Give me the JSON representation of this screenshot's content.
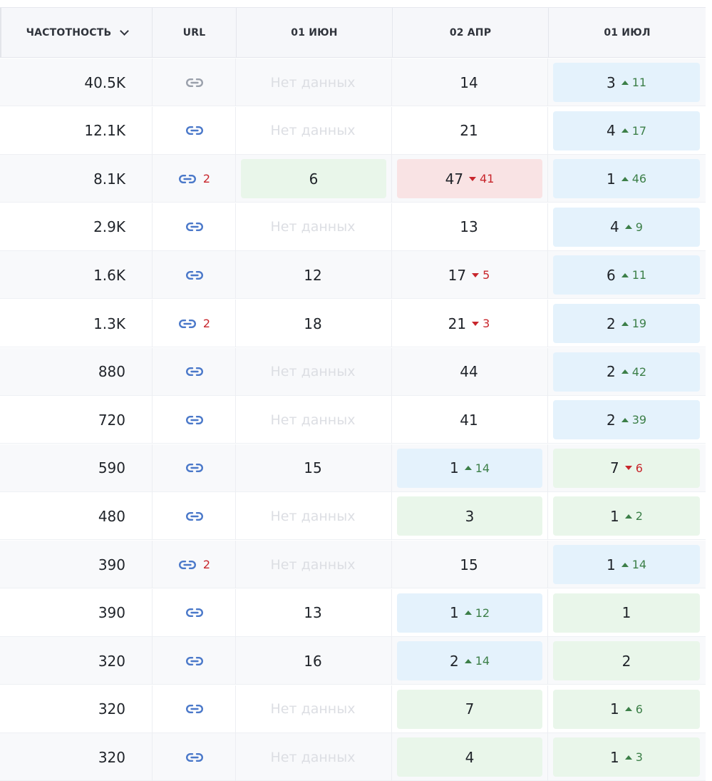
{
  "header": {
    "freq_label": "ЧАСТОТНОСТЬ",
    "url_label": "URL",
    "dates": [
      "01 ИЮН",
      "02 АПР",
      "01 ИЮЛ"
    ]
  },
  "no_data_label": "Нет данных",
  "colors": {
    "blue_pill": "#e4f2fc",
    "green_pill": "#e9f6ea",
    "red_pill": "#f9e3e4",
    "up": "#3c7f48",
    "down": "#c8262c",
    "link_icon": "#4a78c9"
  },
  "rows": [
    {
      "freq": "40.5K",
      "url_icon": "link-icon",
      "url_muted": true,
      "url_count": "",
      "jun": {
        "value": "",
        "nodata": true,
        "bg": "none"
      },
      "apr": {
        "value": "14",
        "bg": "none",
        "dir": "",
        "delta": ""
      },
      "jul": {
        "value": "3",
        "bg": "blue",
        "dir": "up",
        "delta": "11"
      }
    },
    {
      "freq": "12.1K",
      "url_icon": "link-icon",
      "url_muted": false,
      "url_count": "",
      "jun": {
        "value": "",
        "nodata": true,
        "bg": "none"
      },
      "apr": {
        "value": "21",
        "bg": "none",
        "dir": "",
        "delta": ""
      },
      "jul": {
        "value": "4",
        "bg": "blue",
        "dir": "up",
        "delta": "17"
      }
    },
    {
      "freq": "8.1K",
      "url_icon": "link-icon",
      "url_muted": false,
      "url_count": "2",
      "jun": {
        "value": "6",
        "nodata": false,
        "bg": "green"
      },
      "apr": {
        "value": "47",
        "bg": "red",
        "dir": "down",
        "delta": "41"
      },
      "jul": {
        "value": "1",
        "bg": "blue",
        "dir": "up",
        "delta": "46"
      }
    },
    {
      "freq": "2.9K",
      "url_icon": "link-icon",
      "url_muted": false,
      "url_count": "",
      "jun": {
        "value": "",
        "nodata": true,
        "bg": "none"
      },
      "apr": {
        "value": "13",
        "bg": "none",
        "dir": "",
        "delta": ""
      },
      "jul": {
        "value": "4",
        "bg": "blue",
        "dir": "up",
        "delta": "9"
      }
    },
    {
      "freq": "1.6K",
      "url_icon": "link-icon",
      "url_muted": false,
      "url_count": "",
      "jun": {
        "value": "12",
        "nodata": false,
        "bg": "none"
      },
      "apr": {
        "value": "17",
        "bg": "none",
        "dir": "down",
        "delta": "5"
      },
      "jul": {
        "value": "6",
        "bg": "blue",
        "dir": "up",
        "delta": "11"
      }
    },
    {
      "freq": "1.3K",
      "url_icon": "link-icon",
      "url_muted": false,
      "url_count": "2",
      "jun": {
        "value": "18",
        "nodata": false,
        "bg": "none"
      },
      "apr": {
        "value": "21",
        "bg": "none",
        "dir": "down",
        "delta": "3"
      },
      "jul": {
        "value": "2",
        "bg": "blue",
        "dir": "up",
        "delta": "19"
      }
    },
    {
      "freq": "880",
      "url_icon": "link-icon",
      "url_muted": false,
      "url_count": "",
      "jun": {
        "value": "",
        "nodata": true,
        "bg": "none"
      },
      "apr": {
        "value": "44",
        "bg": "none",
        "dir": "",
        "delta": ""
      },
      "jul": {
        "value": "2",
        "bg": "blue",
        "dir": "up",
        "delta": "42"
      }
    },
    {
      "freq": "720",
      "url_icon": "link-icon",
      "url_muted": false,
      "url_count": "",
      "jun": {
        "value": "",
        "nodata": true,
        "bg": "none"
      },
      "apr": {
        "value": "41",
        "bg": "none",
        "dir": "",
        "delta": ""
      },
      "jul": {
        "value": "2",
        "bg": "blue",
        "dir": "up",
        "delta": "39"
      }
    },
    {
      "freq": "590",
      "url_icon": "link-icon",
      "url_muted": false,
      "url_count": "",
      "jun": {
        "value": "15",
        "nodata": false,
        "bg": "none"
      },
      "apr": {
        "value": "1",
        "bg": "blue",
        "dir": "up",
        "delta": "14"
      },
      "jul": {
        "value": "7",
        "bg": "green",
        "dir": "down",
        "delta": "6"
      }
    },
    {
      "freq": "480",
      "url_icon": "link-icon",
      "url_muted": false,
      "url_count": "",
      "jun": {
        "value": "",
        "nodata": true,
        "bg": "none"
      },
      "apr": {
        "value": "3",
        "bg": "green",
        "dir": "",
        "delta": ""
      },
      "jul": {
        "value": "1",
        "bg": "green",
        "dir": "up",
        "delta": "2"
      }
    },
    {
      "freq": "390",
      "url_icon": "link-icon",
      "url_muted": false,
      "url_count": "2",
      "jun": {
        "value": "",
        "nodata": true,
        "bg": "none"
      },
      "apr": {
        "value": "15",
        "bg": "none",
        "dir": "",
        "delta": ""
      },
      "jul": {
        "value": "1",
        "bg": "blue",
        "dir": "up",
        "delta": "14"
      }
    },
    {
      "freq": "390",
      "url_icon": "link-icon",
      "url_muted": false,
      "url_count": "",
      "jun": {
        "value": "13",
        "nodata": false,
        "bg": "none"
      },
      "apr": {
        "value": "1",
        "bg": "blue",
        "dir": "up",
        "delta": "12"
      },
      "jul": {
        "value": "1",
        "bg": "green",
        "dir": "",
        "delta": ""
      }
    },
    {
      "freq": "320",
      "url_icon": "link-icon",
      "url_muted": false,
      "url_count": "",
      "jun": {
        "value": "16",
        "nodata": false,
        "bg": "none"
      },
      "apr": {
        "value": "2",
        "bg": "blue",
        "dir": "up",
        "delta": "14"
      },
      "jul": {
        "value": "2",
        "bg": "green",
        "dir": "",
        "delta": ""
      }
    },
    {
      "freq": "320",
      "url_icon": "link-icon",
      "url_muted": false,
      "url_count": "",
      "jun": {
        "value": "",
        "nodata": true,
        "bg": "none"
      },
      "apr": {
        "value": "7",
        "bg": "green",
        "dir": "",
        "delta": ""
      },
      "jul": {
        "value": "1",
        "bg": "green",
        "dir": "up",
        "delta": "6"
      }
    },
    {
      "freq": "320",
      "url_icon": "link-icon",
      "url_muted": false,
      "url_count": "",
      "jun": {
        "value": "",
        "nodata": true,
        "bg": "none"
      },
      "apr": {
        "value": "4",
        "bg": "green",
        "dir": "",
        "delta": ""
      },
      "jul": {
        "value": "1",
        "bg": "green",
        "dir": "up",
        "delta": "3"
      }
    }
  ]
}
